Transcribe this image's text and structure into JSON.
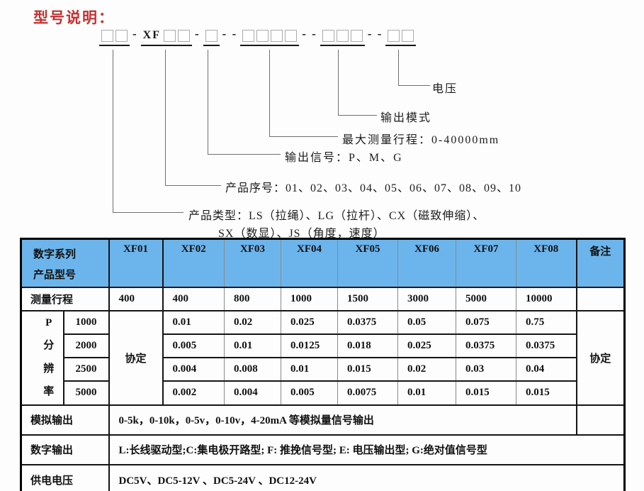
{
  "title": "型号说明：",
  "model_code": {
    "groups": [
      {
        "prefix": "",
        "boxes": 2
      },
      {
        "prefix": "XF",
        "boxes": 2
      },
      {
        "prefix": "",
        "boxes": 1
      },
      {
        "prefix": "",
        "boxes": 4
      },
      {
        "prefix": "",
        "boxes": 3
      },
      {
        "prefix": "",
        "boxes": 2
      }
    ],
    "separators": [
      "-",
      "-",
      "- -",
      "- -",
      "- -"
    ]
  },
  "callouts": [
    {
      "label": "电压"
    },
    {
      "label": "输出模式"
    },
    {
      "label": "最大测量行程：0-40000mm"
    },
    {
      "label": "输出信号：P、M、G"
    },
    {
      "label": "产品序号：01、02、03、04、05、06、07、08、09、10"
    },
    {
      "label": "产品类型：LS（拉绳）、LG（拉杆）、CX（磁致伸缩）、",
      "label2": "SX（数显）、JS（角度，速度）"
    }
  ],
  "table": {
    "header": {
      "label_line1": "数字系列",
      "label_line2": "产品型号",
      "models": [
        "XF01",
        "XF02",
        "XF03",
        "XF04",
        "XF05",
        "XF06",
        "XF07",
        "XF08"
      ],
      "note": "备注"
    },
    "travel": {
      "label": "测量行程",
      "values": [
        "400",
        "400",
        "800",
        "1000",
        "1500",
        "3000",
        "5000",
        "10000"
      ]
    },
    "resolution": {
      "label_chars": [
        "P",
        "分",
        "辨",
        "率"
      ],
      "xf01": "协定",
      "note": "协定",
      "rows": [
        {
          "freq": "1000",
          "values": [
            "0.01",
            "0.02",
            "0.025",
            "0.0375",
            "0.05",
            "0.075",
            "0.75"
          ]
        },
        {
          "freq": "2000",
          "values": [
            "0.005",
            "0.01",
            "0.0125",
            "0.018",
            "0.025",
            "0.0375",
            "0.0375"
          ]
        },
        {
          "freq": "2500",
          "values": [
            "0.004",
            "0.008",
            "0.01",
            "0.015",
            "0.02",
            "0.03",
            "0.04"
          ]
        },
        {
          "freq": "5000",
          "values": [
            "0.002",
            "0.004",
            "0.005",
            "0.0075",
            "0.01",
            "0.015",
            "0.015"
          ]
        }
      ]
    },
    "analog": {
      "label": "模拟输出",
      "value": "0-5k，0-10k，0-5v，0-10v，4-20mA 等模拟量信号输出"
    },
    "digital": {
      "label": "数字输出",
      "value": "L:长线驱动型;C:集电极开路型; F: 推挽信号型; E: 电压输出型; G:绝对值信号型"
    },
    "power": {
      "label": "供电电压",
      "value": "DC5V、DC5-12V 、DC5-24V 、DC12-24V"
    }
  }
}
